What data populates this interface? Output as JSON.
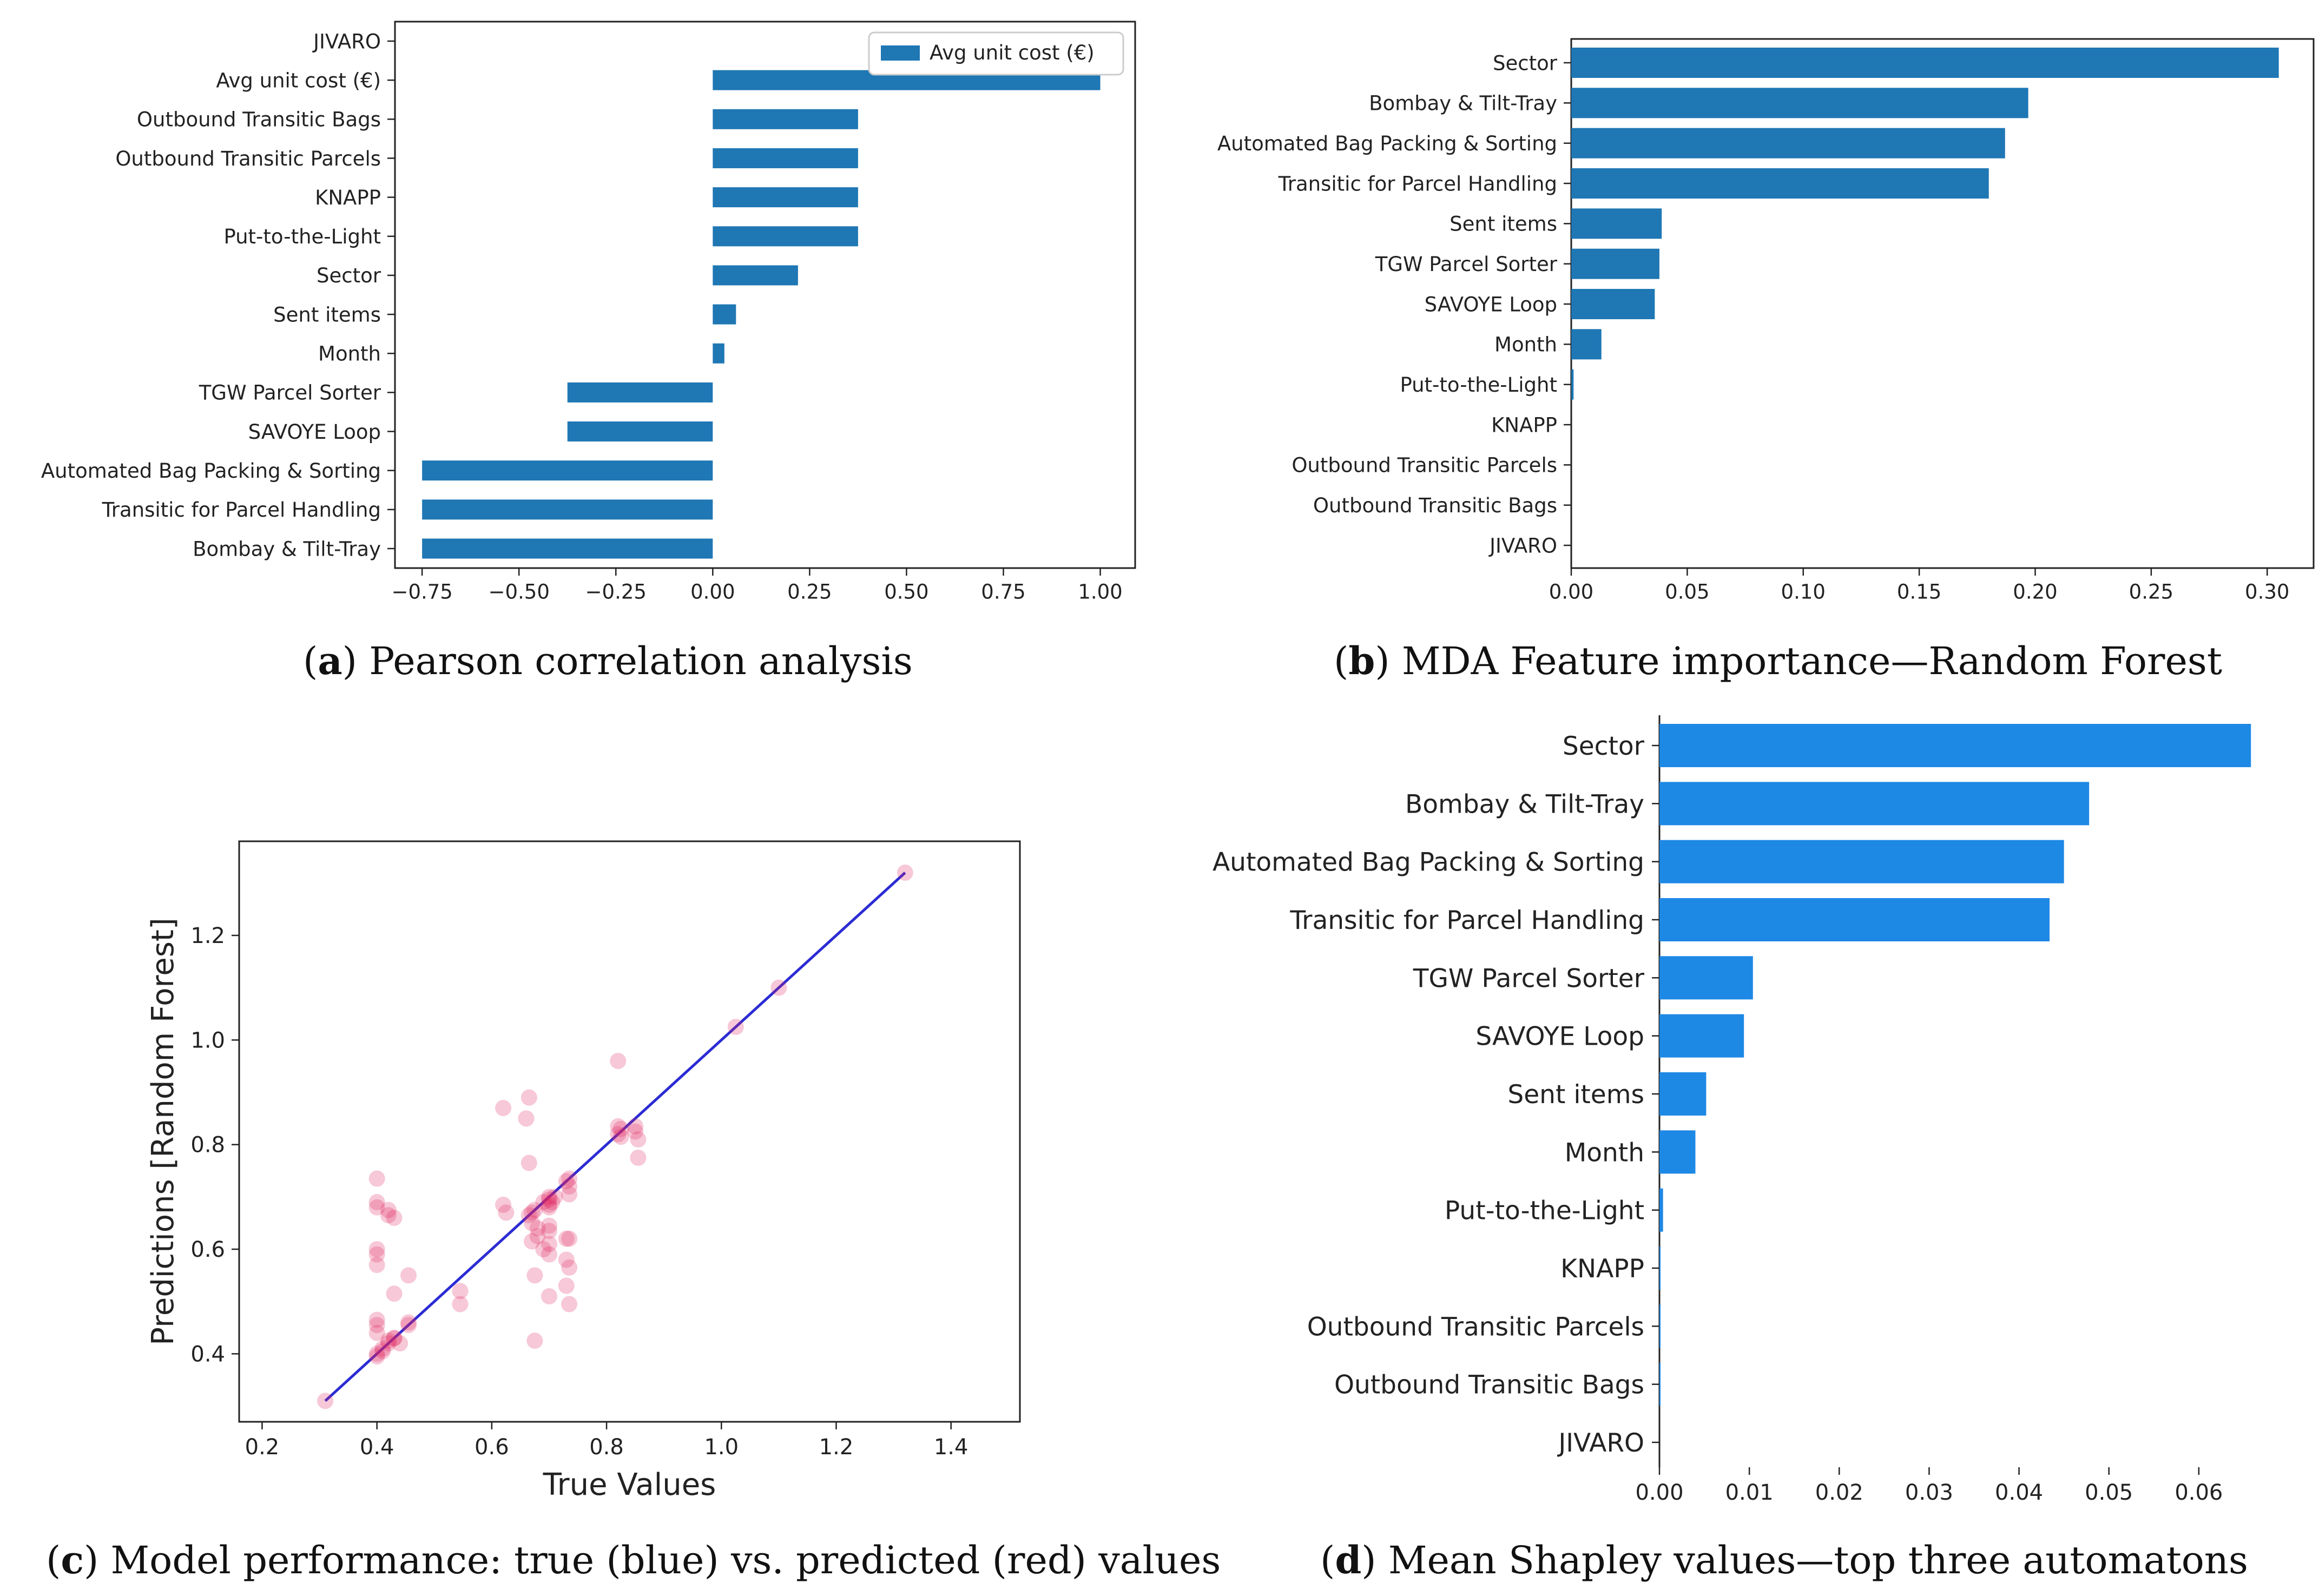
{
  "colors": {
    "bar_a": "#1f77b4",
    "bar_b": "#1f77b4",
    "bar_d": "#1e88e5",
    "line_c": "#2b2bd4",
    "pts_c": "#e0245e"
  },
  "captions": {
    "a": {
      "letter": "a",
      "text": " Pearson correlation analysis"
    },
    "b": {
      "letter": "b",
      "text": " MDA Feature importance—Random Forest"
    },
    "c": {
      "letter": "c",
      "text": " Model performance: true (blue) vs. predicted (red) values"
    },
    "d": {
      "letter": "d",
      "text": " Mean Shapley values—top three automatons"
    }
  },
  "chart_data": [
    {
      "id": "a",
      "type": "bar",
      "orientation": "horizontal",
      "categories": [
        "JIVARO",
        "Avg unit cost (€)",
        "Outbound Transitic Bags",
        "Outbound Transitic Parcels",
        "KNAPP",
        "Put-to-the-Light",
        "Sector",
        "Sent items",
        "Month",
        "TGW Parcel Sorter",
        "SAVOYE Loop",
        "Automated Bag Packing & Sorting",
        "Transitic for Parcel Handling",
        "Bombay & Tilt-Tray"
      ],
      "values": [
        null,
        1.0,
        0.375,
        0.375,
        0.375,
        0.375,
        0.22,
        0.06,
        0.03,
        -0.375,
        -0.375,
        -0.75,
        -0.75,
        -0.75
      ],
      "xlim": [
        -0.82,
        1.09
      ],
      "xticks": [
        -0.75,
        -0.5,
        -0.25,
        0.0,
        0.25,
        0.5,
        0.75,
        1.0
      ],
      "xtick_labels": [
        "−0.75",
        "−0.50",
        "−0.25",
        "0.00",
        "0.25",
        "0.50",
        "0.75",
        "1.00"
      ],
      "legend": {
        "label": "Avg unit cost (€)",
        "position": "top-right"
      },
      "title": "",
      "xlabel": "",
      "ylabel": ""
    },
    {
      "id": "b",
      "type": "bar",
      "orientation": "horizontal",
      "categories": [
        "Sector",
        "Bombay & Tilt-Tray",
        "Automated Bag Packing & Sorting",
        "Transitic for Parcel Handling",
        "Sent items",
        "TGW Parcel Sorter",
        "SAVOYE Loop",
        "Month",
        "Put-to-the-Light",
        "KNAPP",
        "Outbound Transitic Parcels",
        "Outbound Transitic Bags",
        "JIVARO"
      ],
      "values": [
        0.305,
        0.197,
        0.187,
        0.18,
        0.039,
        0.038,
        0.036,
        0.013,
        0.001,
        0,
        0,
        0,
        0
      ],
      "xlim": [
        0,
        0.32
      ],
      "xticks": [
        0.0,
        0.05,
        0.1,
        0.15,
        0.2,
        0.25,
        0.3
      ],
      "xtick_labels": [
        "0.00",
        "0.05",
        "0.10",
        "0.15",
        "0.20",
        "0.25",
        "0.30"
      ],
      "title": "",
      "xlabel": "",
      "ylabel": ""
    },
    {
      "id": "c",
      "type": "scatter",
      "xlabel": "True Values",
      "ylabel": "Predictions [Random Forest]",
      "xlim": [
        0.16,
        1.52
      ],
      "ylim": [
        0.27,
        1.38
      ],
      "xticks": [
        0.2,
        0.4,
        0.6,
        0.8,
        1.0,
        1.2,
        1.4
      ],
      "xtick_labels": [
        "0.2",
        "0.4",
        "0.6",
        "0.8",
        "1.0",
        "1.2",
        "1.4"
      ],
      "yticks": [
        0.4,
        0.6,
        0.8,
        1.0,
        1.2
      ],
      "ytick_labels": [
        "0.4",
        "0.6",
        "0.8",
        "1.0",
        "1.2"
      ],
      "line": {
        "name": "true",
        "x": [
          0.31,
          1.32
        ],
        "y": [
          0.31,
          1.32
        ]
      },
      "points": {
        "name": "predicted",
        "x": [
          0.31,
          0.4,
          0.4,
          0.4,
          0.4,
          0.4,
          0.4,
          0.4,
          0.4,
          0.4,
          0.41,
          0.42,
          0.42,
          0.43,
          0.43,
          0.44,
          0.455,
          0.455,
          0.545,
          0.545,
          0.62,
          0.62,
          0.625,
          0.66,
          0.665,
          0.665,
          0.67,
          0.67,
          0.675,
          0.675,
          0.68,
          0.68,
          0.69,
          0.7,
          0.7,
          0.7,
          0.7,
          0.7,
          0.7,
          0.7,
          0.73,
          0.73,
          0.73,
          0.735,
          0.735,
          0.735,
          0.735,
          0.735,
          0.82,
          0.82,
          0.825,
          0.825,
          0.85,
          0.85,
          0.855,
          0.855,
          1.025,
          1.1,
          1.32,
          0.4,
          0.41,
          0.42,
          0.43,
          0.67,
          0.69,
          0.7,
          0.71,
          0.73,
          0.4,
          0.42,
          0.43,
          0.455,
          0.665,
          0.675,
          0.705,
          0.7,
          0.735,
          0.82
        ],
        "y": [
          0.31,
          0.735,
          0.69,
          0.68,
          0.6,
          0.59,
          0.57,
          0.465,
          0.455,
          0.44,
          0.41,
          0.675,
          0.665,
          0.66,
          0.515,
          0.42,
          0.55,
          0.46,
          0.52,
          0.495,
          0.87,
          0.685,
          0.67,
          0.85,
          0.89,
          0.765,
          0.65,
          0.615,
          0.55,
          0.425,
          0.64,
          0.625,
          0.6,
          0.695,
          0.685,
          0.645,
          0.635,
          0.61,
          0.59,
          0.51,
          0.62,
          0.58,
          0.53,
          0.72,
          0.705,
          0.62,
          0.565,
          0.495,
          0.96,
          0.835,
          0.83,
          0.815,
          0.835,
          0.825,
          0.81,
          0.775,
          1.025,
          1.1,
          1.32,
          0.4,
          0.405,
          0.42,
          0.43,
          0.67,
          0.69,
          0.7,
          0.7,
          0.73,
          0.395,
          0.425,
          0.43,
          0.455,
          0.665,
          0.675,
          0.69,
          0.68,
          0.735,
          0.82
        ]
      },
      "title": ""
    },
    {
      "id": "d",
      "type": "bar",
      "orientation": "horizontal",
      "categories": [
        "Sector",
        "Bombay & Tilt-Tray",
        "Automated Bag Packing & Sorting",
        "Transitic for Parcel Handling",
        "TGW Parcel Sorter",
        "SAVOYE Loop",
        "Sent items",
        "Month",
        "Put-to-the-Light",
        "KNAPP",
        "Outbound Transitic Parcels",
        "Outbound Transitic Bags",
        "JIVARO"
      ],
      "values": [
        0.0658,
        0.0478,
        0.045,
        0.0434,
        0.0104,
        0.0094,
        0.0052,
        0.004,
        0.0004,
        0.0001,
        0.0001,
        0.0001,
        0
      ],
      "xlim": [
        0,
        0.07
      ],
      "xticks": [
        0.0,
        0.01,
        0.02,
        0.03,
        0.04,
        0.05,
        0.06
      ],
      "xtick_labels": [
        "0.00",
        "0.01",
        "0.02",
        "0.03",
        "0.04",
        "0.05",
        "0.06"
      ],
      "title": "",
      "xlabel": "",
      "ylabel": ""
    }
  ]
}
